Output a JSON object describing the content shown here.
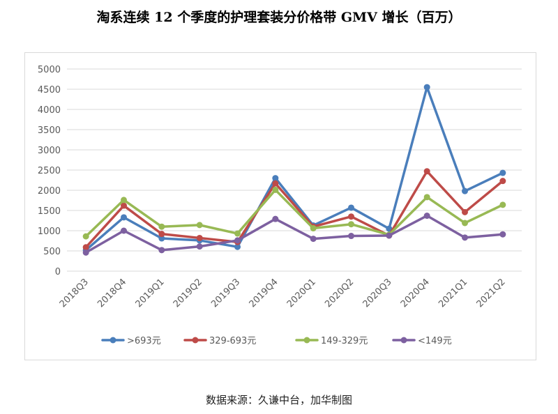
{
  "title": "淘系连续 12 个季度的护理套装分价格带 GMV 增长（百万）",
  "source": "数据来源：久谦中台，加华制图",
  "chart_data": {
    "type": "line",
    "title": "淘系连续 12 个季度的护理套装分价格带 GMV 增长（百万）",
    "xlabel": "",
    "ylabel": "",
    "ylim": [
      0,
      5000
    ],
    "yticks": [
      0,
      500,
      1000,
      1500,
      2000,
      2500,
      3000,
      3500,
      4000,
      4500,
      5000
    ],
    "grid": true,
    "legend_position": "bottom",
    "categories": [
      "2018Q3",
      "2018Q4",
      "2019Q1",
      "2019Q2",
      "2019Q3",
      "2019Q4",
      "2020Q1",
      "2020Q2",
      "2020Q3",
      "2020Q4",
      "2021Q1",
      "2021Q2"
    ],
    "series": [
      {
        "name": ">693元",
        "color": "#4a7ebb",
        "values": [
          520,
          1330,
          810,
          760,
          600,
          2300,
          1130,
          1570,
          1050,
          4550,
          1980,
          2430
        ]
      },
      {
        "name": "329-693元",
        "color": "#be4b48",
        "values": [
          590,
          1620,
          920,
          820,
          720,
          2170,
          1100,
          1350,
          880,
          2470,
          1460,
          2230
        ]
      },
      {
        "name": "149-329元",
        "color": "#98b954",
        "values": [
          860,
          1760,
          1100,
          1140,
          930,
          2010,
          1060,
          1160,
          900,
          1830,
          1190,
          1640
        ]
      },
      {
        "name": "<149元",
        "color": "#7d60a0",
        "values": [
          460,
          1000,
          520,
          610,
          760,
          1290,
          800,
          870,
          880,
          1370,
          830,
          910
        ]
      }
    ]
  }
}
